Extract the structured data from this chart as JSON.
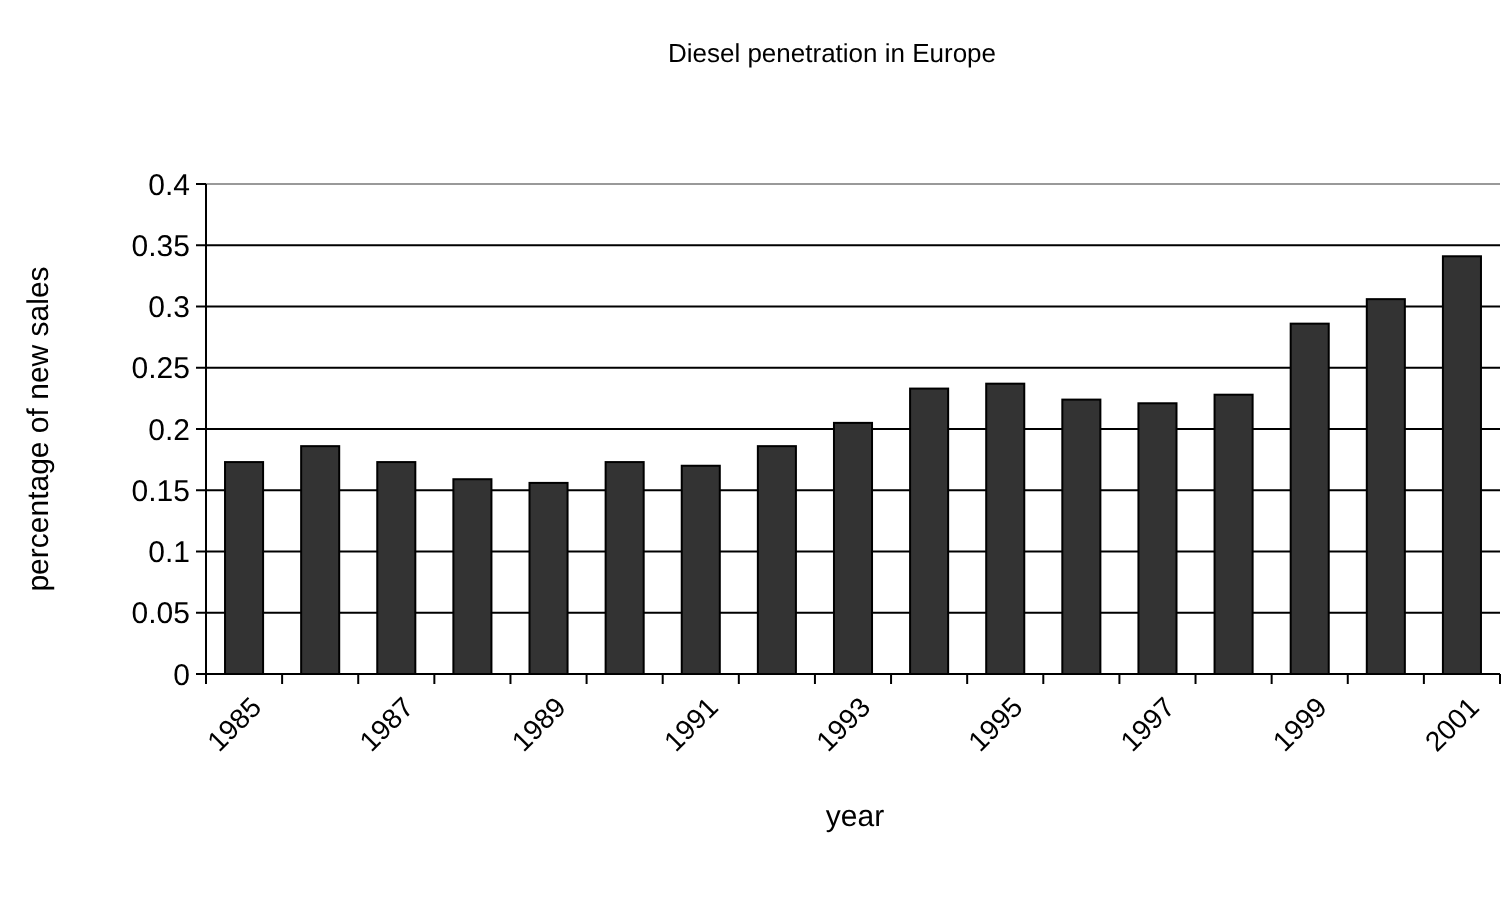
{
  "chart_data": {
    "type": "bar",
    "title": "Diesel penetration in Europe",
    "xlabel": "year",
    "ylabel": "percentage of new sales",
    "categories": [
      "1985",
      null,
      "1987",
      null,
      "1989",
      null,
      "1991",
      null,
      "1993",
      null,
      "1995",
      null,
      "1997",
      null,
      "1999",
      null,
      "2001"
    ],
    "values": [
      0.173,
      0.186,
      0.173,
      0.159,
      0.156,
      0.173,
      0.17,
      0.186,
      0.205,
      0.233,
      0.237,
      0.224,
      0.221,
      0.228,
      0.286,
      0.306,
      0.341
    ],
    "color": "#333333",
    "ylim": [
      0,
      0.4
    ],
    "yticks": [
      0,
      0.05,
      0.1,
      0.15,
      0.2,
      0.25,
      0.3,
      0.35,
      0.4
    ],
    "grid": "y"
  }
}
